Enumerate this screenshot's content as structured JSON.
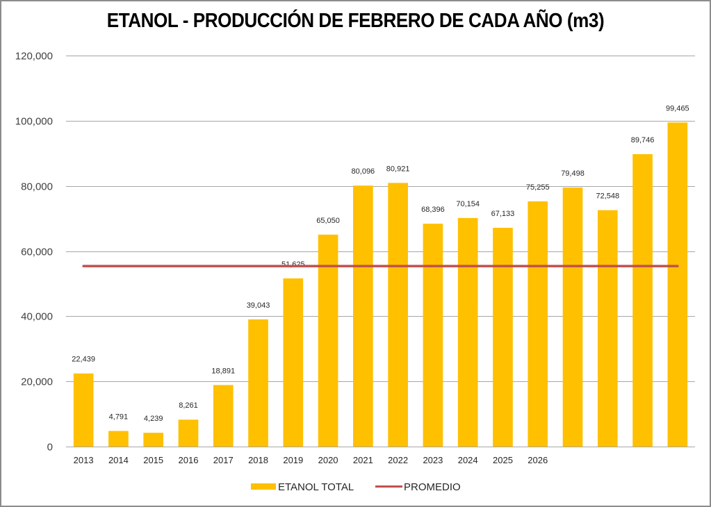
{
  "chart_data": {
    "type": "bar",
    "title": "ETANOL - PRODUCCIÓN DE FEBRERO DE CADA AÑO (m3)",
    "xlabel": "",
    "ylabel": "",
    "ylim": [
      0,
      120000
    ],
    "y_ticks": [
      0,
      20000,
      40000,
      60000,
      80000,
      100000,
      120000
    ],
    "y_tick_labels": [
      "0",
      "20,000",
      "40,000",
      "60,000",
      "80,000",
      "100,000",
      "120,000"
    ],
    "grid": true,
    "categories": [
      "2013",
      "2014",
      "2015",
      "2016",
      "2017",
      "2018",
      "2019",
      "2020",
      "2021",
      "2022",
      "2023",
      "2024",
      "2025",
      "2026",
      "",
      "",
      "",
      ""
    ],
    "series": [
      {
        "name": "ETANOL TOTAL",
        "type": "bar",
        "color": "#FFC000",
        "values": [
          22439,
          4791,
          4239,
          8261,
          18891,
          39043,
          51625,
          65050,
          80096,
          80921,
          68396,
          70154,
          67133,
          75255,
          79498,
          72548,
          89746,
          99465
        ],
        "data_labels": [
          "22,439",
          "4,791",
          "4,239",
          "8,261",
          "18,891",
          "39,043",
          "51,625",
          "65,050",
          "80,096",
          "80,921",
          "68,396",
          "70,154",
          "67,133",
          "75,255",
          "79,498",
          "72,548",
          "89,746",
          "99,465"
        ]
      },
      {
        "name": "PROMEDIO",
        "type": "line",
        "color": "#C0504D",
        "values": [
          55400,
          55400,
          55400,
          55400,
          55400,
          55400,
          55400,
          55400,
          55400,
          55400,
          55400,
          55400,
          55400,
          55400,
          55400,
          55400,
          55400,
          55400
        ]
      }
    ],
    "legend": {
      "position": "bottom",
      "entries": [
        "ETANOL TOTAL",
        "PROMEDIO"
      ]
    },
    "colors": {
      "bar": "#FFC000",
      "average_line": "#C0504D",
      "gridline": "#A6A6A6",
      "frame": "#8C8C8C"
    }
  }
}
